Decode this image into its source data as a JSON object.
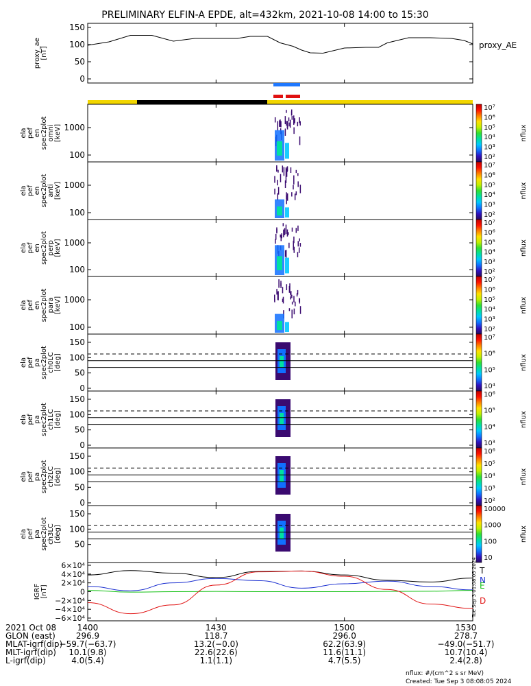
{
  "title": "PRELIMINARY ELFIN-A EPDE, alt=432km, 2021-10-08 14:00 to 15:30",
  "colors": {
    "axis": "#000000",
    "science_zone": "#f2d600",
    "eclipse": "#000000",
    "ibo_blue": "#1f78ff",
    "ibo_red": "#e01010",
    "trace_T": "#000000",
    "trace_N": "#1a2ed0",
    "trace_E": "#10c010",
    "trace_D": "#e01010"
  },
  "panels": {
    "proxy_ae": {
      "ylabel": "proxy_ae\n[nT]",
      "legend": "proxy_AE",
      "yticks": [
        "0",
        "50",
        "100",
        "150"
      ]
    },
    "omni": {
      "ylabel": "ela\npef\nen\nspec2plot\nomni\n[keV]",
      "yticks": [
        "100",
        "1000"
      ]
    },
    "anti": {
      "ylabel": "ela\npef\nen\nspec2plot\nanti\n[keV]",
      "yticks": [
        "100",
        "1000"
      ]
    },
    "perp": {
      "ylabel": "ela\npef\nen\nspec2plot\nperp\n[keV]",
      "yticks": [
        "100",
        "1000"
      ]
    },
    "para": {
      "ylabel": "ela\npef\nen\nspec2plot\npara\n[keV]",
      "yticks": [
        "100",
        "1000"
      ]
    },
    "ch0": {
      "ylabel": "ela\npef\npa\nspec2plot\nch0LC\n[deg]",
      "yticks": [
        "0",
        "50",
        "100",
        "150"
      ]
    },
    "ch1": {
      "ylabel": "ela\npef\npa\nspec2plot\nch1LC\n[deg]",
      "yticks": [
        "0",
        "50",
        "100",
        "150"
      ]
    },
    "ch2": {
      "ylabel": "ela\npef\npa\nspec2plot\nch2LC\n[deg]",
      "yticks": [
        "0",
        "50",
        "100",
        "150"
      ]
    },
    "ch3": {
      "ylabel": "ela\npef\npa\nspec2plot\nch3LC\n[deg]",
      "yticks": [
        "50",
        "100",
        "150"
      ]
    },
    "igrf": {
      "ylabel": "IGRF\n[nT]",
      "yticks": [
        "−6×10⁴",
        "−4×10⁴",
        "−2×10⁴",
        "0",
        "2×10⁴",
        "4×10⁴",
        "6×10⁴"
      ],
      "legend": [
        "T",
        "N",
        "E",
        "D"
      ]
    }
  },
  "colorbars": {
    "omni": {
      "label": "nflux",
      "ticks": [
        "10²",
        "10³",
        "10⁴",
        "10⁵",
        "10⁶",
        "10⁷"
      ]
    },
    "anti": {
      "label": "nflux",
      "ticks": [
        "10²",
        "10³",
        "10⁴",
        "10⁵",
        "10⁶",
        "10⁷"
      ]
    },
    "perp": {
      "label": "nflux",
      "ticks": [
        "10²",
        "10³",
        "10⁴",
        "10⁵",
        "10⁶",
        "10⁷"
      ]
    },
    "para": {
      "label": "nflux",
      "ticks": [
        "10²",
        "10³",
        "10⁴",
        "10⁵",
        "10⁶",
        "10⁷"
      ]
    },
    "ch0": {
      "label": "nflux",
      "ticks": [
        "10⁴",
        "10⁵",
        "10⁶",
        "10⁷"
      ]
    },
    "ch1": {
      "label": "nflux",
      "ticks": [
        "10³",
        "10⁴",
        "10⁵",
        "10⁶"
      ]
    },
    "ch2": {
      "label": "nflux",
      "ticks": [
        "10²",
        "10³",
        "10⁴",
        "10⁵",
        "10⁶"
      ]
    },
    "ch3": {
      "label": "nflux",
      "ticks": [
        "10",
        "100",
        "1000",
        "10000"
      ]
    }
  },
  "xaxis": {
    "ticks": [
      "1400",
      "1430",
      "1500",
      "1530"
    ],
    "rows": [
      {
        "label": "2021 Oct 08",
        "values": [
          "1400",
          "1430",
          "1500",
          "1530"
        ]
      },
      {
        "label": "GLON (east)",
        "values": [
          "296.9",
          "118.7",
          "296.0",
          "278.7"
        ]
      },
      {
        "label": "MLAT-igrf(dip)",
        "values": [
          "−59.7(−63.7)",
          "13.2(−0.0)",
          "62.2(63.9)",
          "−49.0(−51.7)"
        ]
      },
      {
        "label": "MLT-igrf(dip)",
        "values": [
          "10.1(9.8)",
          "22.6(22.6)",
          "11.6(11.1)",
          "10.7(10.4)"
        ]
      },
      {
        "label": "L-igrf(dip)",
        "values": [
          "4.0(5.4)",
          "1.1(1.1)",
          "4.7(5.5)",
          "2.4(2.8)"
        ]
      }
    ]
  },
  "footer": {
    "units": "nflux: #/(cm^2 s sr MeV)",
    "created": "Created: Tue Sep  3 08:08:05 2024"
  },
  "side_stamp": "Tue Sep  3 01:08:05 2024",
  "chart_data": [
    {
      "type": "line",
      "name": "proxy_AE",
      "x": [
        0,
        5,
        10,
        15,
        20,
        25,
        30,
        35,
        38,
        42,
        45,
        48,
        50,
        52,
        55,
        60,
        65,
        68,
        70,
        75,
        80,
        85,
        88,
        90
      ],
      "y": [
        98,
        108,
        127,
        127,
        110,
        118,
        118,
        118,
        124,
        124,
        105,
        95,
        84,
        76,
        75,
        90,
        92,
        92,
        105,
        120,
        120,
        118,
        112,
        102
      ],
      "ylim": [
        0,
        150
      ]
    },
    {
      "type": "line",
      "name": "IGRF",
      "x": [
        0,
        10,
        20,
        30,
        40,
        50,
        60,
        70,
        80,
        90
      ],
      "series": [
        {
          "name": "T",
          "values": [
            38000,
            48000,
            42000,
            32000,
            46000,
            47000,
            38000,
            26000,
            22000,
            31000
          ]
        },
        {
          "name": "N",
          "values": [
            12000,
            2000,
            20000,
            30000,
            25000,
            8000,
            18000,
            24000,
            12000,
            4000
          ]
        },
        {
          "name": "E",
          "values": [
            3000,
            -1000,
            0,
            500,
            0,
            0,
            0,
            500,
            1000,
            3000
          ]
        },
        {
          "name": "D",
          "values": [
            -25000,
            -50000,
            -30000,
            15000,
            45000,
            47000,
            35000,
            5000,
            -28000,
            -38000
          ]
        }
      ],
      "ylim": [
        -60000,
        60000
      ]
    }
  ]
}
